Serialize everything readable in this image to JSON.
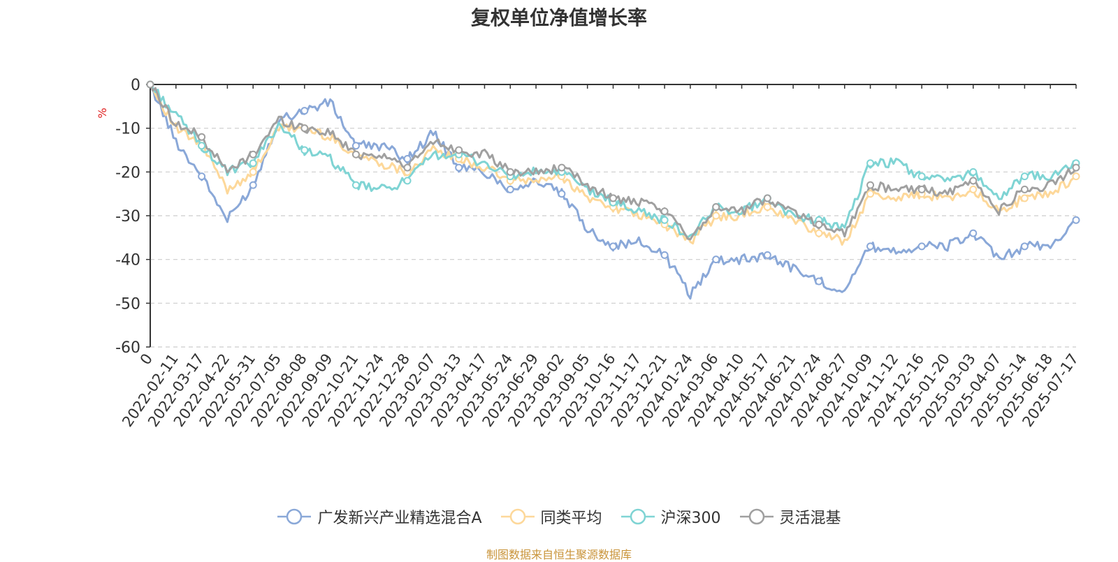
{
  "chart_data": {
    "type": "line",
    "title": "复权单位净值增长率",
    "ylabel": "%",
    "ylim": [
      -60,
      0
    ],
    "yticks": [
      0,
      -10,
      -20,
      -30,
      -40,
      -50,
      -60
    ],
    "x_tick_labels": [
      "0",
      "2022-02-11",
      "2022-03-17",
      "2022-04-22",
      "2022-05-31",
      "2022-07-05",
      "2022-08-08",
      "2022-09-09",
      "2022-10-21",
      "2022-11-24",
      "2022-12-28",
      "2023-02-07",
      "2023-03-13",
      "2023-04-17",
      "2023-05-24",
      "2023-06-29",
      "2023-08-02",
      "2023-09-05",
      "2023-10-16",
      "2023-11-17",
      "2023-12-21",
      "2024-01-24",
      "2024-03-06",
      "2024-04-10",
      "2024-05-17",
      "2024-06-21",
      "2024-07-24",
      "2024-08-27",
      "2024-10-09",
      "2024-11-12",
      "2024-12-16",
      "2025-01-20",
      "2025-03-03",
      "2025-04-07",
      "2025-05-14",
      "2025-06-18",
      "2025-07-17"
    ],
    "grid": "horizontal-dashed",
    "legend_position": "bottom",
    "x": [
      "0",
      "2022-02-11",
      "2022-03-17",
      "2022-04-22",
      "2022-05-31",
      "2022-07-05",
      "2022-08-08",
      "2022-09-09",
      "2022-10-21",
      "2022-11-24",
      "2022-12-28",
      "2023-02-07",
      "2023-03-13",
      "2023-04-17",
      "2023-05-24",
      "2023-06-29",
      "2023-08-02",
      "2023-09-05",
      "2023-10-16",
      "2023-11-17",
      "2023-12-21",
      "2024-01-24",
      "2024-03-06",
      "2024-04-10",
      "2024-05-17",
      "2024-06-21",
      "2024-07-24",
      "2024-08-27",
      "2024-10-09",
      "2024-11-12",
      "2024-12-16",
      "2025-01-20",
      "2025-03-03",
      "2025-04-07",
      "2025-05-14",
      "2025-06-18",
      "2025-07-17"
    ],
    "series": [
      {
        "name": "广发新兴产业精选混合A",
        "color": "#8aa8d8",
        "values": [
          0,
          -13,
          -21,
          -31,
          -23,
          -8,
          -6,
          -4,
          -14,
          -14,
          -17,
          -11,
          -19,
          -20,
          -24,
          -22,
          -25,
          -33,
          -37,
          -36,
          -39,
          -48,
          -40,
          -40,
          -39,
          -42,
          -45,
          -47,
          -37,
          -38,
          -37,
          -37,
          -34,
          -40,
          -37,
          -37,
          -31
        ]
      },
      {
        "name": "同类平均",
        "color": "#fdd89a",
        "values": [
          0,
          -10,
          -14,
          -24,
          -20,
          -10,
          -10,
          -12,
          -16,
          -18,
          -20,
          -15,
          -17,
          -19,
          -22,
          -22,
          -21,
          -26,
          -28,
          -30,
          -32,
          -36,
          -30,
          -30,
          -28,
          -31,
          -34,
          -36,
          -25,
          -26,
          -25,
          -26,
          -24,
          -29,
          -26,
          -25,
          -21
        ]
      },
      {
        "name": "沪深300",
        "color": "#7fd4d4",
        "values": [
          0,
          -7,
          -14,
          -20,
          -18,
          -9,
          -15,
          -17,
          -23,
          -24,
          -22,
          -16,
          -16,
          -18,
          -21,
          -20,
          -20,
          -24,
          -27,
          -29,
          -31,
          -35,
          -28,
          -29,
          -26,
          -30,
          -31,
          -33,
          -18,
          -18,
          -21,
          -22,
          -20,
          -26,
          -21,
          -21,
          -18
        ]
      },
      {
        "name": "灵活混基",
        "color": "#a0a0a0",
        "values": [
          0,
          -9,
          -12,
          -20,
          -16,
          -8,
          -10,
          -11,
          -16,
          -16,
          -19,
          -13,
          -15,
          -16,
          -20,
          -20,
          -19,
          -23,
          -26,
          -27,
          -29,
          -35,
          -28,
          -29,
          -26,
          -29,
          -32,
          -34,
          -23,
          -24,
          -24,
          -25,
          -22,
          -29,
          -24,
          -23,
          -19
        ]
      }
    ]
  },
  "source_note": "制图数据来自恒生聚源数据库"
}
